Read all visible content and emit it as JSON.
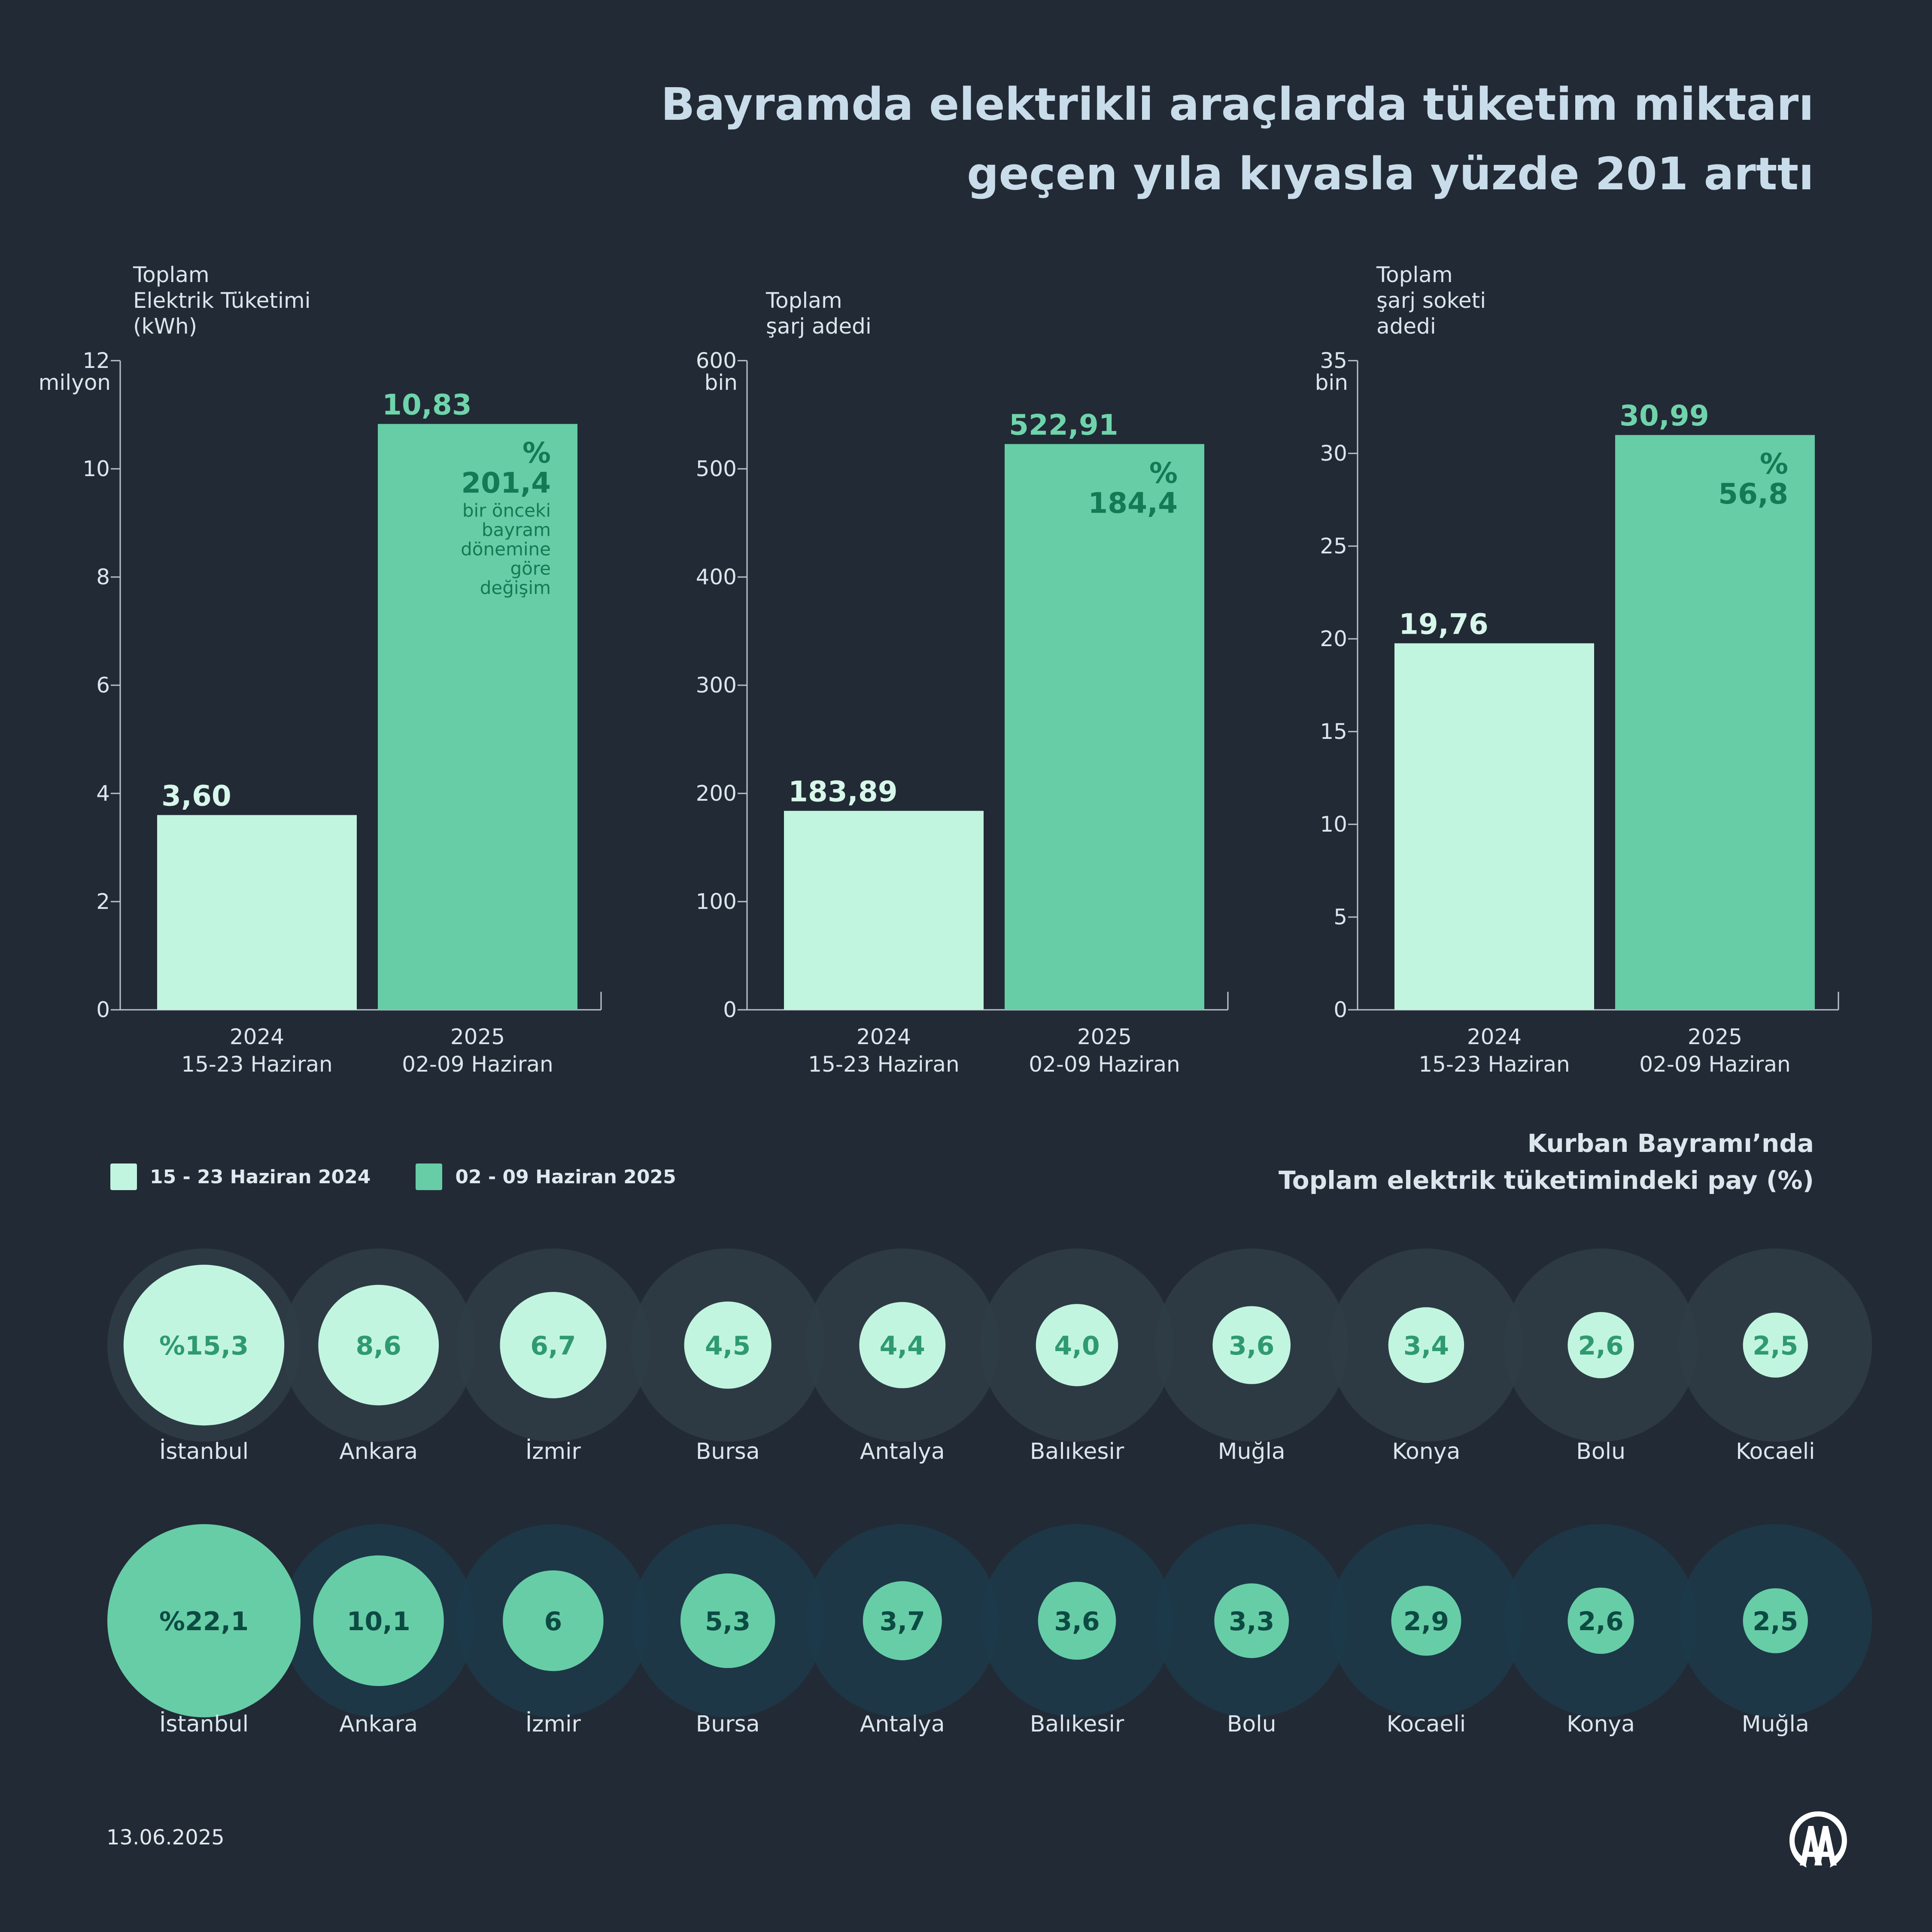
{
  "title": {
    "line1": "Bayramda elektrikli araçlarda tüketim miktarı",
    "line2": "geçen yıla kıyasla yüzde 201 arttı"
  },
  "colors": {
    "background": "#222a35",
    "y2024": "#c2f5df",
    "y2025": "#67cda6",
    "change_text": "#137a55",
    "label_2025": "#6fd4ab",
    "axis": "#b9c4cc"
  },
  "categories": [
    "2024\n15-23 Haziran",
    "2025\n02-09 Haziran"
  ],
  "chart_data": [
    {
      "type": "bar",
      "title": "Toplam\nElektrik Tüketimi\n(kWh)",
      "unit": "milyon",
      "categories": [
        "2024\n15-23 Haziran",
        "2025\n02-09 Haziran"
      ],
      "values": [
        3.6,
        10.83
      ],
      "value_labels": [
        "3,60",
        "10,83"
      ],
      "ylim": [
        0,
        12
      ],
      "yticks": [
        0,
        2,
        4,
        6,
        8,
        10,
        12
      ],
      "change": {
        "symbol": "%",
        "value": "201,4",
        "note": "bir önceki\nbayram\ndönemine\ngöre\ndeğişim"
      }
    },
    {
      "type": "bar",
      "title": "Toplam\nşarj adedi",
      "unit": "bin",
      "categories": [
        "2024\n15-23 Haziran",
        "2025\n02-09 Haziran"
      ],
      "values": [
        183.89,
        522.91
      ],
      "value_labels": [
        "183,89",
        "522,91"
      ],
      "ylim": [
        0,
        600
      ],
      "yticks": [
        0,
        100,
        200,
        300,
        400,
        500,
        600
      ],
      "change": {
        "symbol": "%",
        "value": "184,4",
        "note": ""
      }
    },
    {
      "type": "bar",
      "title": "Toplam\nşarj soketi\nadedi",
      "unit": "bin",
      "categories": [
        "2024\n15-23 Haziran",
        "2025\n02-09 Haziran"
      ],
      "values": [
        19.76,
        30.99
      ],
      "value_labels": [
        "19,76",
        "30,99"
      ],
      "ylim": [
        0,
        35
      ],
      "yticks": [
        0,
        5,
        10,
        15,
        20,
        25,
        30,
        35
      ],
      "change": {
        "symbol": "%",
        "value": "56,8",
        "note": ""
      }
    },
    {
      "type": "bubble",
      "series": "15 - 23 Haziran 2024",
      "categories": [
        "İstanbul",
        "Ankara",
        "İzmir",
        "Bursa",
        "Antalya",
        "Balıkesir",
        "Muğla",
        "Konya",
        "Bolu",
        "Kocaeli"
      ],
      "values": [
        15.3,
        8.6,
        6.7,
        4.5,
        4.4,
        4.0,
        3.6,
        3.4,
        2.6,
        2.5
      ],
      "value_labels": [
        "%15,3",
        "8,6",
        "6,7",
        "4,5",
        "4,4",
        "4,0",
        "3,6",
        "3,4",
        "2,6",
        "2,5"
      ]
    },
    {
      "type": "bubble",
      "series": "02 - 09 Haziran 2025",
      "categories": [
        "İstanbul",
        "Ankara",
        "İzmir",
        "Bursa",
        "Antalya",
        "Balıkesir",
        "Bolu",
        "Kocaeli",
        "Konya",
        "Muğla"
      ],
      "values": [
        22.1,
        10.1,
        6,
        5.3,
        3.7,
        3.6,
        3.3,
        2.9,
        2.6,
        2.5
      ],
      "value_labels": [
        "%22,1",
        "10,1",
        "6",
        "5,3",
        "3,7",
        "3,6",
        "3,3",
        "2,9",
        "2,6",
        "2,5"
      ]
    }
  ],
  "legend": {
    "y2024": "15 - 23 Haziran 2024",
    "y2025": "02 - 09 Haziran 2025"
  },
  "share_title": {
    "line1": "Kurban Bayramı’nda",
    "line2": "Toplam elektrik tüketimindeki pay (%)"
  },
  "date": "13.06.2025",
  "logo": {
    "icon": "aa-logo-icon"
  }
}
